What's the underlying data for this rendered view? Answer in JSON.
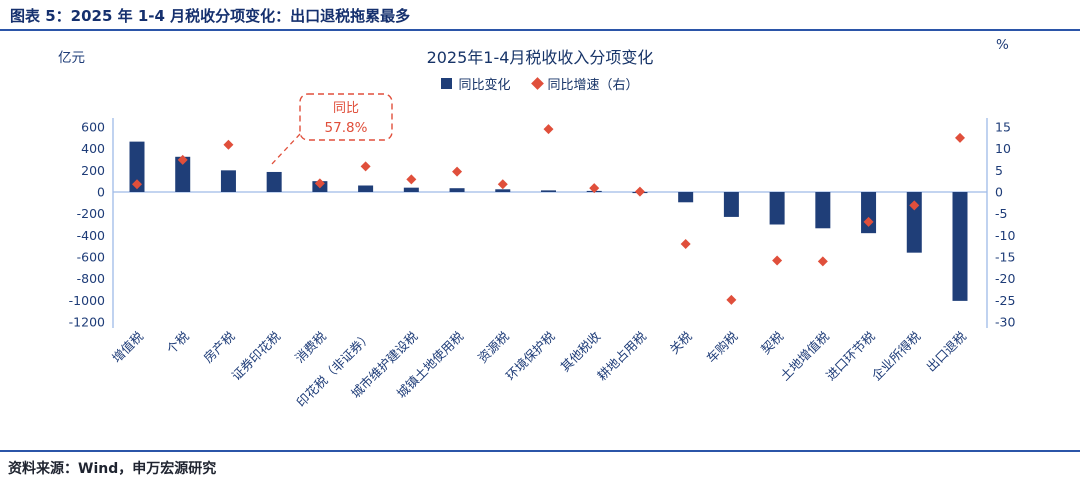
{
  "header": {
    "title": "图表 5：2025 年 1-4 月税收分项变化：出口退税拖累最多"
  },
  "chart": {
    "title": "2025年1-4月税收收入分项变化",
    "left_unit": "亿元",
    "right_unit": "%",
    "legend": [
      {
        "label": "同比变化",
        "type": "bar"
      },
      {
        "label": "同比增速（右）",
        "type": "diamond"
      }
    ]
  },
  "colors": {
    "navy": "#1F3E78",
    "red": "#E04F3B",
    "axis_blue": "#9FBBE8",
    "text_navy": "#1E3C78",
    "rule_blue": "#2B55A8"
  },
  "footer": {
    "source": "资料来源：Wind，申万宏源研究"
  },
  "chart_data": {
    "type": "bar",
    "title": "2025年1-4月税收收入分项变化",
    "categories": [
      "增值税",
      "个税",
      "房产税",
      "证券印花税",
      "消费税",
      "印花税（非证券）",
      "城市维护建设税",
      "城镇土地使用税",
      "资源税",
      "环境保护税",
      "其他税收",
      "耕地占用税",
      "关税",
      "车购税",
      "契税",
      "土地增值税",
      "进口环节税",
      "企业所得税",
      "出口退税"
    ],
    "series": [
      {
        "name": "同比变化",
        "type": "bar",
        "axis": "left",
        "unit": "亿元",
        "values": [
          465,
          325,
          200,
          185,
          100,
          60,
          40,
          35,
          25,
          15,
          10,
          -10,
          -95,
          -230,
          -300,
          -335,
          -380,
          -560,
          -1005
        ]
      },
      {
        "name": "同比增速（右）",
        "type": "scatter-diamond",
        "axis": "right",
        "unit": "%",
        "values": [
          1.8,
          7.4,
          10.9,
          null,
          2.0,
          5.9,
          2.9,
          4.7,
          1.8,
          14.5,
          0.9,
          0.1,
          -12.0,
          -24.9,
          -15.8,
          -16.0,
          -6.9,
          -3.1,
          12.5
        ]
      }
    ],
    "left_axis": {
      "label": "亿元",
      "max": 600,
      "min": -1200,
      "ticks": [
        600,
        400,
        200,
        0,
        -200,
        -400,
        -600,
        -800,
        -1000,
        -1200
      ]
    },
    "right_axis": {
      "label": "%",
      "max": 15,
      "min": -30,
      "ticks": [
        15,
        10,
        5,
        0,
        -5,
        -10,
        -15,
        -20,
        -25,
        -30
      ]
    },
    "legend_position": "top-center",
    "grid": false,
    "annotation": {
      "target": "证券印花税",
      "lines": [
        "同比",
        "57.8%"
      ],
      "value_pct": 57.8
    }
  }
}
